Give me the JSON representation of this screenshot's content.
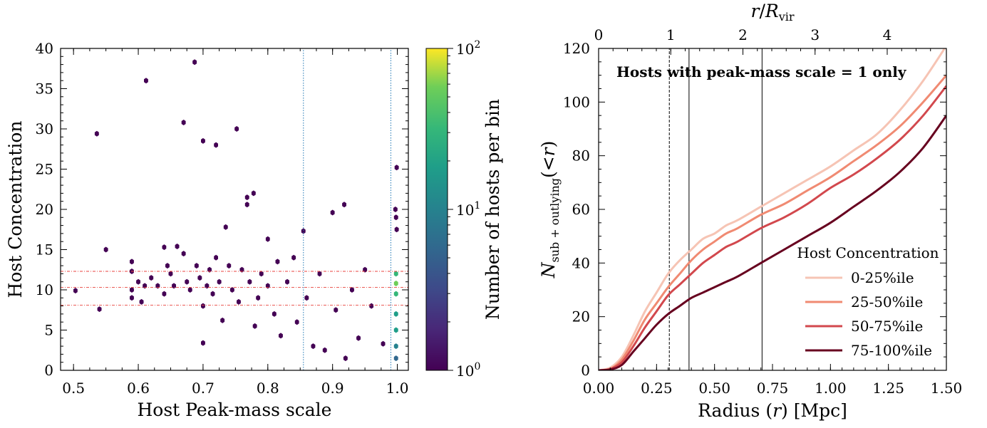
{
  "chart_data": [
    {
      "type": "hexbin",
      "xlabel": "Host Peak-mass scale",
      "ylabel": "Host Concentration",
      "xlim": [
        0.48,
        1.017
      ],
      "ylim": [
        0,
        40
      ],
      "xticks": [
        0.5,
        0.6,
        0.7,
        0.8,
        0.9,
        1.0
      ],
      "xtick_labels": [
        "0.5",
        "0.6",
        "0.7",
        "0.8",
        "0.9",
        "1.0"
      ],
      "yticks": [
        0,
        5,
        10,
        15,
        20,
        25,
        30,
        35,
        40
      ],
      "ytick_labels": [
        "0",
        "5",
        "10",
        "15",
        "20",
        "25",
        "30",
        "35",
        "40"
      ],
      "hlines": [
        12.3,
        10.3,
        8.1
      ],
      "vlines": [
        0.855,
        0.99
      ],
      "colorbar": {
        "label": "Number of hosts per bin",
        "scale": "log",
        "range": [
          1,
          100
        ],
        "tick_bases": [
          "10",
          "10",
          "10"
        ],
        "tick_exps": [
          "0",
          "1",
          "2"
        ]
      },
      "points": [
        [
          0.503,
          9.9,
          1
        ],
        [
          0.536,
          29.4,
          1
        ],
        [
          0.54,
          7.6,
          1
        ],
        [
          0.55,
          15.0,
          1
        ],
        [
          0.59,
          13.5,
          1
        ],
        [
          0.59,
          12.3,
          1
        ],
        [
          0.59,
          10.0,
          1
        ],
        [
          0.59,
          9.0,
          1
        ],
        [
          0.6,
          11.0,
          1
        ],
        [
          0.605,
          8.5,
          1
        ],
        [
          0.61,
          10.5,
          1
        ],
        [
          0.612,
          36.0,
          1
        ],
        [
          0.62,
          11.5,
          1
        ],
        [
          0.63,
          10.5,
          1
        ],
        [
          0.64,
          15.3,
          1
        ],
        [
          0.64,
          9.5,
          1
        ],
        [
          0.645,
          13.0,
          1
        ],
        [
          0.65,
          12.0,
          1
        ],
        [
          0.655,
          10.5,
          1
        ],
        [
          0.66,
          15.4,
          1
        ],
        [
          0.67,
          30.8,
          1
        ],
        [
          0.67,
          14.5,
          1
        ],
        [
          0.675,
          11.0,
          1
        ],
        [
          0.68,
          10.0,
          1
        ],
        [
          0.687,
          38.3,
          1
        ],
        [
          0.69,
          13.0,
          1
        ],
        [
          0.695,
          11.5,
          1
        ],
        [
          0.7,
          28.5,
          1
        ],
        [
          0.7,
          3.4,
          1
        ],
        [
          0.7,
          8.0,
          1
        ],
        [
          0.706,
          10.5,
          1
        ],
        [
          0.71,
          12.5,
          1
        ],
        [
          0.715,
          9.5,
          1
        ],
        [
          0.72,
          28.0,
          1
        ],
        [
          0.72,
          14.0,
          1
        ],
        [
          0.725,
          11.0,
          1
        ],
        [
          0.73,
          6.2,
          1
        ],
        [
          0.735,
          17.8,
          1
        ],
        [
          0.74,
          13.0,
          1
        ],
        [
          0.745,
          10.0,
          1
        ],
        [
          0.752,
          30.0,
          1
        ],
        [
          0.755,
          8.5,
          1
        ],
        [
          0.76,
          12.5,
          1
        ],
        [
          0.768,
          21.5,
          1
        ],
        [
          0.768,
          20.6,
          1
        ],
        [
          0.772,
          11.0,
          1
        ],
        [
          0.778,
          22.0,
          1
        ],
        [
          0.78,
          5.5,
          1
        ],
        [
          0.785,
          9.0,
          1
        ],
        [
          0.79,
          12.0,
          1
        ],
        [
          0.8,
          16.3,
          1
        ],
        [
          0.8,
          10.5,
          1
        ],
        [
          0.81,
          7.0,
          1
        ],
        [
          0.815,
          13.5,
          1
        ],
        [
          0.82,
          4.3,
          1
        ],
        [
          0.83,
          11.0,
          1
        ],
        [
          0.84,
          14.0,
          1
        ],
        [
          0.845,
          6.0,
          1
        ],
        [
          0.855,
          17.3,
          1
        ],
        [
          0.86,
          9.0,
          1
        ],
        [
          0.87,
          3.0,
          1
        ],
        [
          0.88,
          12.0,
          1
        ],
        [
          0.888,
          2.5,
          1
        ],
        [
          0.9,
          19.6,
          1
        ],
        [
          0.905,
          7.5,
          1
        ],
        [
          0.918,
          20.6,
          1
        ],
        [
          0.92,
          1.5,
          1
        ],
        [
          0.93,
          10.0,
          1
        ],
        [
          0.94,
          4.0,
          1
        ],
        [
          0.95,
          12.5,
          1
        ],
        [
          0.96,
          8.0,
          1
        ],
        [
          0.978,
          3.3,
          1
        ],
        [
          0.999,
          25.2,
          1
        ],
        [
          0.997,
          20.0,
          1
        ],
        [
          0.998,
          19.0,
          1
        ],
        [
          0.999,
          17.5,
          1
        ],
        [
          0.998,
          12.0,
          30
        ],
        [
          0.998,
          10.8,
          60
        ],
        [
          0.998,
          9.5,
          40
        ],
        [
          0.998,
          7.0,
          20
        ],
        [
          0.998,
          5.0,
          15
        ],
        [
          0.998,
          3.0,
          10
        ],
        [
          0.998,
          1.5,
          6
        ]
      ]
    },
    {
      "type": "line",
      "xlabel": "Radius (r) [Mpc]",
      "ylabel": "N_{sub+outlying}(<r)",
      "top_xlabel": "r/R_vir",
      "xlim": [
        0,
        1.5
      ],
      "ylim": [
        0,
        120
      ],
      "top_xlim": [
        0,
        4.82
      ],
      "xticks": [
        0,
        0.25,
        0.5,
        0.75,
        1.0,
        1.25,
        1.5
      ],
      "xtick_labels": [
        "0.00",
        "0.25",
        "0.50",
        "0.75",
        "1.00",
        "1.25",
        "1.50"
      ],
      "yticks": [
        0,
        20,
        40,
        60,
        80,
        100,
        120
      ],
      "ytick_labels": [
        "0",
        "20",
        "40",
        "60",
        "80",
        "100",
        "120"
      ],
      "top_xticks": [
        0,
        1,
        2,
        3,
        4
      ],
      "top_xtick_labels": [
        "0",
        "1",
        "2",
        "3",
        "4"
      ],
      "annotation": "Hosts with peak-mass scale = 1 only",
      "legend_title": "Host Concentration",
      "legend_placement": "lower-right",
      "vlines": [
        {
          "x": 0.305,
          "style": "dashed"
        },
        {
          "x": 0.39,
          "style": "solid"
        },
        {
          "x": 0.705,
          "style": "solid"
        }
      ],
      "series": [
        {
          "name": "0-25%ile",
          "color": "#f6c4b4",
          "x": [
            0,
            0.05,
            0.1,
            0.15,
            0.2,
            0.25,
            0.3,
            0.35,
            0.4,
            0.45,
            0.5,
            0.55,
            0.6,
            0.7,
            0.8,
            0.9,
            1.0,
            1.1,
            1.2,
            1.3,
            1.4,
            1.5
          ],
          "y": [
            0,
            1,
            5,
            13,
            22,
            29,
            36,
            41,
            45,
            49,
            51,
            54,
            56,
            61,
            66,
            71,
            76,
            82,
            88,
            97,
            108,
            121
          ]
        },
        {
          "name": "25-50%ile",
          "color": "#f08a72",
          "x": [
            0,
            0.05,
            0.1,
            0.15,
            0.2,
            0.25,
            0.3,
            0.35,
            0.4,
            0.45,
            0.5,
            0.55,
            0.6,
            0.7,
            0.8,
            0.9,
            1.0,
            1.1,
            1.2,
            1.3,
            1.4,
            1.5
          ],
          "y": [
            0,
            0.5,
            4,
            11,
            19,
            25,
            31,
            36,
            41,
            45,
            48,
            51,
            53,
            58,
            62,
            67,
            72,
            78,
            84,
            91,
            100,
            110
          ]
        },
        {
          "name": "50-75%ile",
          "color": "#d2484d",
          "x": [
            0,
            0.05,
            0.1,
            0.15,
            0.2,
            0.25,
            0.3,
            0.35,
            0.4,
            0.45,
            0.5,
            0.55,
            0.6,
            0.7,
            0.8,
            0.9,
            1.0,
            1.1,
            1.2,
            1.3,
            1.4,
            1.5
          ],
          "y": [
            0,
            0.5,
            3,
            9,
            16,
            22,
            28,
            32,
            36,
            40,
            43,
            46,
            48,
            53,
            57,
            62,
            68,
            73,
            79,
            86,
            95,
            106
          ]
        },
        {
          "name": "75-100%ile",
          "color": "#67001f",
          "x": [
            0,
            0.05,
            0.1,
            0.15,
            0.2,
            0.25,
            0.3,
            0.35,
            0.4,
            0.45,
            0.5,
            0.55,
            0.6,
            0.7,
            0.8,
            0.9,
            1.0,
            1.1,
            1.2,
            1.3,
            1.4,
            1.5
          ],
          "y": [
            0,
            0.3,
            2,
            7,
            12,
            17,
            21,
            24,
            27,
            29,
            31,
            33,
            35,
            40,
            45,
            50,
            55,
            61,
            67,
            74,
            83,
            95
          ]
        }
      ]
    }
  ]
}
